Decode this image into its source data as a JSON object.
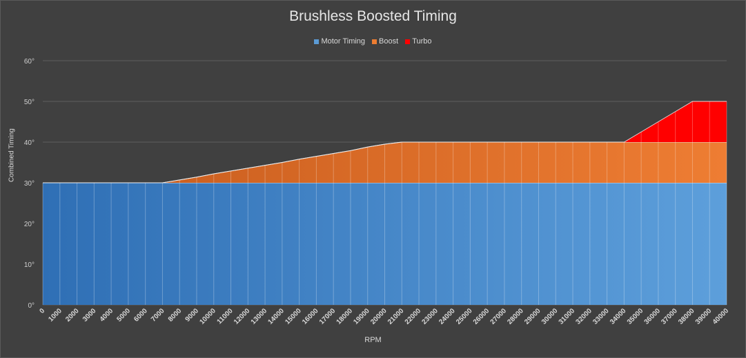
{
  "chart_data": {
    "type": "area",
    "stacked": true,
    "title": "Brushless Boosted Timing",
    "xlabel": "RPM",
    "ylabel": "Combined Timing",
    "x": [
      0,
      1000,
      2000,
      3000,
      4000,
      5000,
      6000,
      7000,
      8000,
      9000,
      10000,
      11000,
      12000,
      13000,
      14000,
      15000,
      16000,
      17000,
      18000,
      19000,
      20000,
      21000,
      22000,
      23000,
      24000,
      25000,
      26000,
      27000,
      28000,
      29000,
      30000,
      31000,
      32000,
      33000,
      34000,
      35000,
      36000,
      37000,
      38000,
      39000,
      40000
    ],
    "ylim": [
      0,
      60
    ],
    "yticks": [
      "0°",
      "10°",
      "20°",
      "30°",
      "40°",
      "50°",
      "60°"
    ],
    "grid": true,
    "legend_position": "top",
    "series": [
      {
        "name": "Motor Timing",
        "color": "#3f82c7",
        "values": [
          30,
          30,
          30,
          30,
          30,
          30,
          30,
          30,
          30,
          30,
          30,
          30,
          30,
          30,
          30,
          30,
          30,
          30,
          30,
          30,
          30,
          30,
          30,
          30,
          30,
          30,
          30,
          30,
          30,
          30,
          30,
          30,
          30,
          30,
          30,
          30,
          30,
          30,
          30,
          30,
          30
        ]
      },
      {
        "name": "Boost",
        "color": "#e07a30",
        "values": [
          0,
          0,
          0,
          0,
          0,
          0,
          0,
          0,
          0.7,
          1.4,
          2.2,
          2.9,
          3.6,
          4.3,
          5.0,
          5.8,
          6.5,
          7.2,
          7.9,
          8.8,
          9.5,
          10,
          10,
          10,
          10,
          10,
          10,
          10,
          10,
          10,
          10,
          10,
          10,
          10,
          10,
          10,
          10,
          10,
          10,
          10,
          10
        ]
      },
      {
        "name": "Turbo",
        "color": "#ff0000",
        "values": [
          0,
          0,
          0,
          0,
          0,
          0,
          0,
          0,
          0,
          0,
          0,
          0,
          0,
          0,
          0,
          0,
          0,
          0,
          0,
          0,
          0,
          0,
          0,
          0,
          0,
          0,
          0,
          0,
          0,
          0,
          0,
          0,
          0,
          0,
          0,
          2.5,
          5,
          7.5,
          10,
          10,
          10
        ]
      }
    ]
  }
}
